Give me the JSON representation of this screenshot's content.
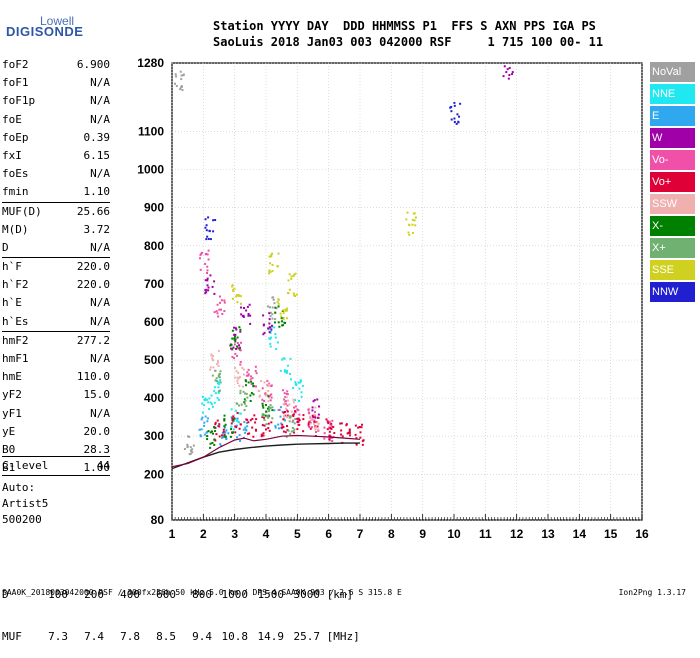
{
  "logo": {
    "line1": "Lowell",
    "line2": "DIGISONDE"
  },
  "header": {
    "row1": "Station YYYY DAY  DDD HHMMSS P1  FFS S AXN PPS IGA PS",
    "row2": "SaoLuis 2018 Jan03 003 042000 RSF     1 715 100 00- 11"
  },
  "params_group1": [
    {
      "label": "foF2",
      "value": "6.900"
    },
    {
      "label": "foF1",
      "value": "N/A"
    },
    {
      "label": "foF1p",
      "value": "N/A"
    },
    {
      "label": "foE",
      "value": "N/A"
    },
    {
      "label": "foEp",
      "value": "0.39"
    },
    {
      "label": "fxI",
      "value": "6.15"
    },
    {
      "label": "foEs",
      "value": "N/A"
    },
    {
      "label": "fmin",
      "value": "1.10"
    }
  ],
  "params_group2": [
    {
      "label": "MUF(D)",
      "value": "25.66"
    },
    {
      "label": "M(D)",
      "value": "3.72"
    },
    {
      "label": "D",
      "value": "N/A"
    }
  ],
  "params_group3": [
    {
      "label": "h`F",
      "value": "220.0"
    },
    {
      "label": "h`F2",
      "value": "220.0"
    },
    {
      "label": "h`E",
      "value": "N/A"
    },
    {
      "label": "h`Es",
      "value": "N/A"
    }
  ],
  "params_group4": [
    {
      "label": "hmF2",
      "value": "277.2"
    },
    {
      "label": "hmF1",
      "value": "N/A"
    },
    {
      "label": "hmE",
      "value": "110.0"
    },
    {
      "label": "yF2",
      "value": "15.0"
    },
    {
      "label": "yF1",
      "value": "N/A"
    },
    {
      "label": "yE",
      "value": "20.0"
    },
    {
      "label": "B0",
      "value": "28.3"
    },
    {
      "label": "B1",
      "value": "1.00"
    }
  ],
  "c_level": {
    "label": "C-level",
    "value": "44"
  },
  "auto": {
    "line1": "Auto:",
    "line2": "Artist5",
    "line3": "500200"
  },
  "muf_table": {
    "d_label": "D",
    "d_values": [
      "100",
      "200",
      "400",
      "600",
      "800",
      "1000",
      "1500",
      "3000"
    ],
    "d_unit": "[km]",
    "muf_label": "MUF",
    "muf_values": [
      "7.3",
      "7.4",
      "7.8",
      "8.5",
      "9.4",
      "10.8",
      "14.9",
      "25.7"
    ],
    "muf_unit": "[MHz]"
  },
  "footer": {
    "text": "SAA0K_2018003042000.RSF / 300fx256h 50 kHz 5.0 km / DPS-4 SAA0K 903 / 2.6 S 315.8 E",
    "version": "Ion2Png 1.3.17"
  },
  "legend": [
    {
      "label": "NoVal",
      "color": "#a0a0a0"
    },
    {
      "label": "NNE",
      "color": "#20e8f0"
    },
    {
      "label": "E",
      "color": "#30a8f0"
    },
    {
      "label": "W",
      "color": "#a000a8"
    },
    {
      "label": "Vo-",
      "color": "#f050a8"
    },
    {
      "label": "Vo+",
      "color": "#e00038"
    },
    {
      "label": "SSW",
      "color": "#f0b0b0"
    },
    {
      "label": "X-",
      "color": "#008000"
    },
    {
      "label": "X+",
      "color": "#70b070"
    },
    {
      "label": "SSE",
      "color": "#d0d020"
    },
    {
      "label": "NNW",
      "color": "#2020d0"
    }
  ],
  "chart_data": {
    "type": "scatter",
    "title": "",
    "xlabel": "",
    "ylabel": "",
    "xlim": [
      1,
      16
    ],
    "ylim": [
      80,
      1280
    ],
    "x_ticks": [
      1,
      2,
      3,
      4,
      5,
      6,
      7,
      8,
      9,
      10,
      11,
      12,
      13,
      14,
      15,
      16
    ],
    "y_ticks": [
      80,
      200,
      300,
      400,
      500,
      600,
      700,
      800,
      900,
      1000,
      1100,
      1280
    ],
    "grid": true,
    "legend_position": "right",
    "profile_curve": {
      "x": [
        1.0,
        1.5,
        2.0,
        2.5,
        3.0,
        3.5,
        4.0,
        4.5,
        5.0,
        5.5,
        6.0,
        6.5,
        7.0
      ],
      "y": [
        215,
        230,
        245,
        258,
        265,
        270,
        274,
        277,
        279,
        280,
        281,
        282,
        282
      ]
    },
    "trace_curve": {
      "x": [
        1.0,
        1.5,
        2.0,
        2.5,
        3.0,
        3.3,
        3.6,
        4.0,
        4.5,
        5.0,
        5.5,
        6.0,
        6.5,
        7.0
      ],
      "y": [
        220,
        228,
        245,
        270,
        290,
        295,
        288,
        292,
        300,
        302,
        300,
        298,
        295,
        292
      ]
    },
    "clusters": [
      {
        "name": "NoVal",
        "x": [
          1.2,
          1.5,
          4.2
        ],
        "y": [
          1230,
          280,
          640
        ]
      },
      {
        "name": "NNE",
        "x": [
          2.1,
          2.4,
          3.0,
          4.2,
          4.6,
          5.0
        ],
        "y": [
          380,
          420,
          350,
          560,
          480,
          420
        ]
      },
      {
        "name": "E",
        "x": [
          2.0,
          2.6,
          3.2,
          4.4
        ],
        "y": [
          330,
          300,
          320,
          350
        ]
      },
      {
        "name": "W",
        "x": [
          2.2,
          3.0,
          3.3,
          4.0,
          5.5,
          11.7
        ],
        "y": [
          700,
          560,
          620,
          600,
          380,
          1270
        ]
      },
      {
        "name": "Vo-",
        "x": [
          2.0,
          2.5,
          3.0,
          3.5,
          4.0,
          4.5,
          5.0,
          5.5,
          6.0
        ],
        "y": [
          760,
          640,
          520,
          460,
          420,
          400,
          360,
          340,
          320
        ]
      },
      {
        "name": "Vo+",
        "x": [
          2.5,
          3.0,
          3.5,
          4.0,
          4.5,
          5.0,
          5.5,
          6.0,
          6.5,
          7.0
        ],
        "y": [
          320,
          340,
          330,
          330,
          340,
          340,
          330,
          320,
          315,
          305
        ]
      },
      {
        "name": "SSW",
        "x": [
          2.3,
          3.1,
          3.9,
          4.7,
          5.5
        ],
        "y": [
          500,
          460,
          420,
          380,
          350
        ]
      },
      {
        "name": "X-",
        "x": [
          2.2,
          2.8,
          3.0,
          3.4,
          4.0,
          4.4
        ],
        "y": [
          300,
          330,
          560,
          420,
          380,
          620
        ]
      },
      {
        "name": "X+",
        "x": [
          2.4,
          3.2,
          4.0,
          4.8
        ],
        "y": [
          450,
          400,
          360,
          330
        ]
      },
      {
        "name": "SSE",
        "x": [
          3.0,
          4.2,
          4.5,
          4.8,
          8.6
        ],
        "y": [
          680,
          760,
          640,
          700,
          860
        ]
      },
      {
        "name": "NNW",
        "x": [
          10.0,
          2.2
        ],
        "y": [
          1150,
          850
        ]
      }
    ]
  }
}
